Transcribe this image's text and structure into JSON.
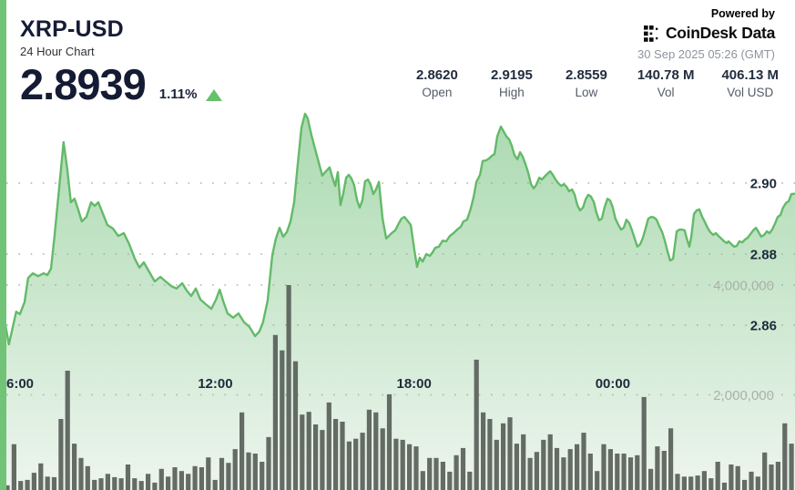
{
  "header": {
    "symbol": "XRP-USD",
    "subtitle": "24 Hour Chart",
    "price": "2.8939",
    "change_percent": "1.11%",
    "change_direction": "up"
  },
  "branding": {
    "powered_by": "Powered by",
    "logo_text": "CoinDesk",
    "logo_text2": "Data",
    "timestamp": "30 Sep 2025 05:26 (GMT)"
  },
  "stats": {
    "items": [
      {
        "value": "2.8620",
        "label": "Open"
      },
      {
        "value": "2.9195",
        "label": "High"
      },
      {
        "value": "2.8559",
        "label": "Low"
      },
      {
        "value": "140.78 M",
        "label": "Vol"
      },
      {
        "value": "406.13 M",
        "label": "Vol USD"
      }
    ]
  },
  "chart_data": {
    "type": "area",
    "title": "XRP-USD 24 hour price with volume bars",
    "x_axis": {
      "unit": "hours since chart start (~05:30 GMT previous day)",
      "span_hours": 24,
      "time_labels": [
        {
          "label": "6:00",
          "t": 0.5
        },
        {
          "label": "12:00",
          "t": 6.5
        },
        {
          "label": "18:00",
          "t": 12.5
        },
        {
          "label": "00:00",
          "t": 18.5
        }
      ]
    },
    "price_axis": {
      "ticks": [
        {
          "label": "2.90",
          "value": 2.9
        },
        {
          "label": "2.88",
          "value": 2.88
        },
        {
          "label": "2.86",
          "value": 2.86
        }
      ],
      "range": [
        2.84,
        2.925
      ]
    },
    "volume_axis": {
      "unit": "millions",
      "ticks": [
        {
          "label": "4,000,000",
          "value": 4.0
        },
        {
          "label": "2,000,000",
          "value": 2.0
        }
      ]
    },
    "grid": "dotted-horizontal",
    "price_series": [
      [
        0,
        2.8646
      ],
      [
        0.14,
        2.8613
      ],
      [
        0.27,
        2.8546
      ],
      [
        0.38,
        2.8592
      ],
      [
        0.49,
        2.8638
      ],
      [
        0.6,
        2.8631
      ],
      [
        0.74,
        2.8664
      ],
      [
        0.85,
        2.8733
      ],
      [
        0.99,
        2.8746
      ],
      [
        1.15,
        2.8738
      ],
      [
        1.32,
        2.8746
      ],
      [
        1.43,
        2.8741
      ],
      [
        1.54,
        2.8759
      ],
      [
        1.65,
        2.8854
      ],
      [
        1.79,
        2.899
      ],
      [
        1.92,
        2.9115
      ],
      [
        2.03,
        2.9041
      ],
      [
        2.14,
        2.8946
      ],
      [
        2.25,
        2.8956
      ],
      [
        2.36,
        2.8926
      ],
      [
        2.47,
        2.8892
      ],
      [
        2.61,
        2.8905
      ],
      [
        2.75,
        2.8946
      ],
      [
        2.86,
        2.8936
      ],
      [
        2.97,
        2.8946
      ],
      [
        3.11,
        2.8913
      ],
      [
        3.24,
        2.8882
      ],
      [
        3.41,
        2.8872
      ],
      [
        3.57,
        2.8851
      ],
      [
        3.74,
        2.8859
      ],
      [
        3.9,
        2.8828
      ],
      [
        4.07,
        2.8787
      ],
      [
        4.21,
        2.8762
      ],
      [
        4.34,
        2.8777
      ],
      [
        4.51,
        2.8749
      ],
      [
        4.67,
        2.8723
      ],
      [
        4.84,
        2.8736
      ],
      [
        5,
        2.8723
      ],
      [
        5.17,
        2.871
      ],
      [
        5.33,
        2.8703
      ],
      [
        5.5,
        2.8718
      ],
      [
        5.64,
        2.8697
      ],
      [
        5.77,
        2.8682
      ],
      [
        5.91,
        2.8703
      ],
      [
        6.05,
        2.8672
      ],
      [
        6.21,
        2.8659
      ],
      [
        6.38,
        2.8646
      ],
      [
        6.52,
        2.8672
      ],
      [
        6.63,
        2.87
      ],
      [
        6.74,
        2.8667
      ],
      [
        6.87,
        2.8633
      ],
      [
        7.04,
        2.8621
      ],
      [
        7.2,
        2.8633
      ],
      [
        7.37,
        2.8608
      ],
      [
        7.53,
        2.8595
      ],
      [
        7.7,
        2.8569
      ],
      [
        7.83,
        2.8582
      ],
      [
        7.94,
        2.8608
      ],
      [
        8.08,
        2.8669
      ],
      [
        8.22,
        2.8797
      ],
      [
        8.33,
        2.8844
      ],
      [
        8.44,
        2.8874
      ],
      [
        8.55,
        2.8849
      ],
      [
        8.66,
        2.8862
      ],
      [
        8.77,
        2.8892
      ],
      [
        8.88,
        2.8946
      ],
      [
        8.99,
        2.9054
      ],
      [
        9.1,
        2.9156
      ],
      [
        9.21,
        2.9195
      ],
      [
        9.29,
        2.9182
      ],
      [
        9.4,
        2.9136
      ],
      [
        9.51,
        2.9097
      ],
      [
        9.62,
        2.9059
      ],
      [
        9.73,
        2.9021
      ],
      [
        9.84,
        2.9033
      ],
      [
        9.95,
        2.9044
      ],
      [
        10.03,
        2.9018
      ],
      [
        10.12,
        2.8992
      ],
      [
        10.2,
        2.9031
      ],
      [
        10.28,
        2.8938
      ],
      [
        10.36,
        2.8969
      ],
      [
        10.45,
        2.9015
      ],
      [
        10.53,
        2.9023
      ],
      [
        10.61,
        2.9013
      ],
      [
        10.69,
        2.8995
      ],
      [
        10.78,
        2.8951
      ],
      [
        10.86,
        2.8931
      ],
      [
        10.94,
        2.8951
      ],
      [
        11.02,
        2.9005
      ],
      [
        11.11,
        2.901
      ],
      [
        11.19,
        2.8995
      ],
      [
        11.27,
        2.8969
      ],
      [
        11.35,
        2.8982
      ],
      [
        11.44,
        2.9003
      ],
      [
        11.55,
        2.89
      ],
      [
        11.66,
        2.8844
      ],
      [
        11.74,
        2.8851
      ],
      [
        11.82,
        2.8859
      ],
      [
        11.93,
        2.8867
      ],
      [
        12.04,
        2.8887
      ],
      [
        12.12,
        2.89
      ],
      [
        12.21,
        2.8905
      ],
      [
        12.32,
        2.8892
      ],
      [
        12.4,
        2.8882
      ],
      [
        12.51,
        2.881
      ],
      [
        12.59,
        2.8764
      ],
      [
        12.67,
        2.879
      ],
      [
        12.76,
        2.8779
      ],
      [
        12.87,
        2.88
      ],
      [
        12.98,
        2.8795
      ],
      [
        13.06,
        2.8805
      ],
      [
        13.14,
        2.8818
      ],
      [
        13.25,
        2.8821
      ],
      [
        13.36,
        2.8838
      ],
      [
        13.47,
        2.8836
      ],
      [
        13.58,
        2.8851
      ],
      [
        13.69,
        2.8859
      ],
      [
        13.8,
        2.8869
      ],
      [
        13.91,
        2.8877
      ],
      [
        13.99,
        2.8892
      ],
      [
        14.1,
        2.8897
      ],
      [
        14.21,
        2.8928
      ],
      [
        14.3,
        2.8962
      ],
      [
        14.38,
        2.9003
      ],
      [
        14.49,
        2.9023
      ],
      [
        14.57,
        2.9062
      ],
      [
        14.68,
        2.9064
      ],
      [
        14.76,
        2.9069
      ],
      [
        14.85,
        2.9077
      ],
      [
        14.93,
        2.9082
      ],
      [
        15.01,
        2.9131
      ],
      [
        15.12,
        2.9159
      ],
      [
        15.2,
        2.9146
      ],
      [
        15.29,
        2.9131
      ],
      [
        15.37,
        2.9123
      ],
      [
        15.45,
        2.9105
      ],
      [
        15.53,
        2.9079
      ],
      [
        15.62,
        2.9067
      ],
      [
        15.7,
        2.9087
      ],
      [
        15.78,
        2.9074
      ],
      [
        15.86,
        2.9054
      ],
      [
        15.95,
        2.9028
      ],
      [
        16.03,
        2.8997
      ],
      [
        16.11,
        2.8985
      ],
      [
        16.19,
        2.8995
      ],
      [
        16.28,
        2.9015
      ],
      [
        16.36,
        2.901
      ],
      [
        16.44,
        2.9018
      ],
      [
        16.52,
        2.9026
      ],
      [
        16.61,
        2.9033
      ],
      [
        16.69,
        2.9023
      ],
      [
        16.77,
        2.901
      ],
      [
        16.85,
        2.9
      ],
      [
        16.94,
        2.8992
      ],
      [
        17.02,
        2.8997
      ],
      [
        17.1,
        2.899
      ],
      [
        17.18,
        2.8977
      ],
      [
        17.27,
        2.8982
      ],
      [
        17.35,
        2.8967
      ],
      [
        17.43,
        2.8938
      ],
      [
        17.51,
        2.8923
      ],
      [
        17.6,
        2.8931
      ],
      [
        17.68,
        2.8954
      ],
      [
        17.76,
        2.8967
      ],
      [
        17.84,
        2.8962
      ],
      [
        17.93,
        2.8946
      ],
      [
        18.01,
        2.8915
      ],
      [
        18.09,
        2.8895
      ],
      [
        18.17,
        2.89
      ],
      [
        18.25,
        2.8931
      ],
      [
        18.34,
        2.8956
      ],
      [
        18.42,
        2.8951
      ],
      [
        18.5,
        2.8931
      ],
      [
        18.58,
        2.89
      ],
      [
        18.67,
        2.8882
      ],
      [
        18.75,
        2.8869
      ],
      [
        18.83,
        2.8874
      ],
      [
        18.91,
        2.8897
      ],
      [
        19,
        2.8887
      ],
      [
        19.08,
        2.8867
      ],
      [
        19.16,
        2.8844
      ],
      [
        19.24,
        2.8821
      ],
      [
        19.33,
        2.8828
      ],
      [
        19.41,
        2.8846
      ],
      [
        19.49,
        2.8872
      ],
      [
        19.57,
        2.89
      ],
      [
        19.66,
        2.8905
      ],
      [
        19.74,
        2.8903
      ],
      [
        19.82,
        2.8897
      ],
      [
        19.9,
        2.8879
      ],
      [
        19.99,
        2.8862
      ],
      [
        20.07,
        2.8838
      ],
      [
        20.15,
        2.8808
      ],
      [
        20.23,
        2.8782
      ],
      [
        20.32,
        2.8787
      ],
      [
        20.37,
        2.8823
      ],
      [
        20.43,
        2.8864
      ],
      [
        20.51,
        2.8869
      ],
      [
        20.59,
        2.8869
      ],
      [
        20.67,
        2.8867
      ],
      [
        20.73,
        2.8844
      ],
      [
        20.81,
        2.8821
      ],
      [
        20.87,
        2.8849
      ],
      [
        20.95,
        2.8913
      ],
      [
        21.03,
        2.8923
      ],
      [
        21.11,
        2.8926
      ],
      [
        21.2,
        2.8905
      ],
      [
        21.28,
        2.889
      ],
      [
        21.36,
        2.8874
      ],
      [
        21.44,
        2.8862
      ],
      [
        21.53,
        2.8854
      ],
      [
        21.61,
        2.8859
      ],
      [
        21.69,
        2.8851
      ],
      [
        21.77,
        2.8844
      ],
      [
        21.86,
        2.8836
      ],
      [
        21.94,
        2.8831
      ],
      [
        21.99,
        2.8836
      ],
      [
        22.08,
        2.8828
      ],
      [
        22.16,
        2.8821
      ],
      [
        22.24,
        2.8823
      ],
      [
        22.32,
        2.8836
      ],
      [
        22.41,
        2.8833
      ],
      [
        22.49,
        2.8841
      ],
      [
        22.57,
        2.8846
      ],
      [
        22.65,
        2.8856
      ],
      [
        22.74,
        2.8867
      ],
      [
        22.82,
        2.8874
      ],
      [
        22.9,
        2.8862
      ],
      [
        22.98,
        2.8849
      ],
      [
        23.07,
        2.8854
      ],
      [
        23.15,
        2.8864
      ],
      [
        23.23,
        2.8859
      ],
      [
        23.31,
        2.8869
      ],
      [
        23.4,
        2.8887
      ],
      [
        23.48,
        2.8905
      ],
      [
        23.56,
        2.891
      ],
      [
        23.64,
        2.8931
      ],
      [
        23.73,
        2.8944
      ],
      [
        23.81,
        2.8949
      ],
      [
        23.89,
        2.8969
      ],
      [
        24,
        2.897
      ]
    ],
    "volume_series_millions": [
      0.35,
      1.1,
      0.43,
      0.45,
      0.58,
      0.75,
      0.51,
      0.5,
      1.56,
      2.44,
      1.11,
      0.85,
      0.7,
      0.45,
      0.48,
      0.56,
      0.5,
      0.48,
      0.73,
      0.48,
      0.43,
      0.56,
      0.4,
      0.65,
      0.51,
      0.68,
      0.61,
      0.56,
      0.7,
      0.68,
      0.86,
      0.45,
      0.85,
      0.76,
      1.01,
      1.68,
      0.95,
      0.93,
      0.78,
      1.23,
      3.09,
      2.81,
      4.0,
      2.61,
      1.64,
      1.69,
      1.46,
      1.36,
      1.86,
      1.56,
      1.51,
      1.15,
      1.2,
      1.31,
      1.73,
      1.68,
      1.39,
      2.01,
      1.2,
      1.18,
      1.1,
      1.06,
      0.61,
      0.85,
      0.85,
      0.78,
      0.6,
      0.9,
      1.03,
      0.6,
      2.64,
      1.68,
      1.56,
      1.18,
      1.48,
      1.59,
      1.11,
      1.28,
      0.85,
      0.96,
      1.18,
      1.28,
      1.03,
      0.86,
      1.01,
      1.1,
      1.31,
      0.93,
      0.61,
      1.1,
      1.01,
      0.93,
      0.93,
      0.86,
      0.9,
      1.96,
      0.65,
      1.06,
      0.98,
      1.39,
      0.56,
      0.51,
      0.51,
      0.53,
      0.61,
      0.48,
      0.78,
      0.4,
      0.73,
      0.7,
      0.45,
      0.6,
      0.51,
      0.95,
      0.73,
      0.78,
      1.48,
      1.11
    ],
    "colors": {
      "line": "#63ba69",
      "area_top": "#a9d9ae",
      "area_bottom": "#edf5ee",
      "volume_bar": "#59615a",
      "accent_green": "#67c06b",
      "accent_stripe": "#71c378",
      "text_dark": "#1f2a3c",
      "text_gray": "#8d949e",
      "grid_dot": "#9fa89f",
      "vol_label": "#a9b1a9"
    }
  }
}
